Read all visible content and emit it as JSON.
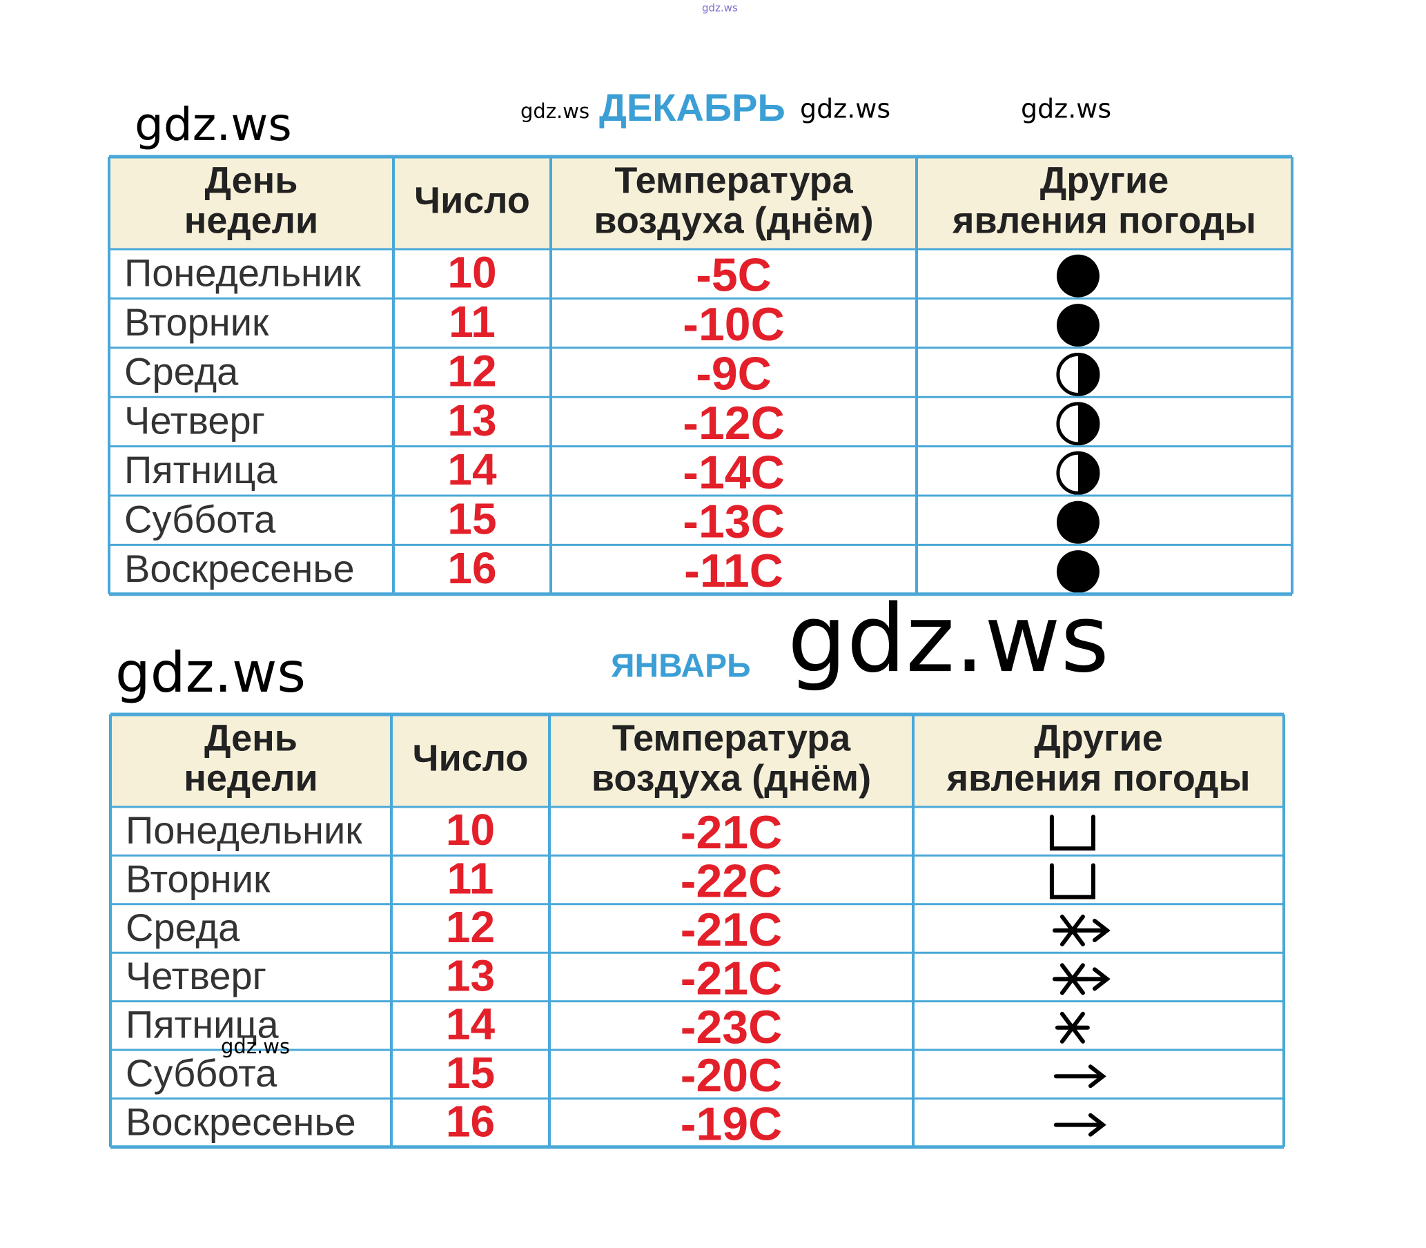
{
  "watermarks": [
    "gdz.ws",
    "gdz.ws",
    "gdz.ws",
    "gdz.ws",
    "gdz.ws",
    "gdz.ws",
    "gdz.ws",
    "gdz.ws"
  ],
  "tables": [
    {
      "title": "ДЕКАБРЬ",
      "header": [
        [
          "День",
          "недели"
        ],
        [
          "Число"
        ],
        [
          "Температура",
          "воздуха  (днём)"
        ],
        [
          "Другие",
          "явления  погоды"
        ]
      ],
      "rows": [
        [
          "Понедельник",
          "10",
          "-5C"
        ],
        [
          "Вторник",
          "11",
          "-10C"
        ],
        [
          "Среда",
          "12",
          "-9C"
        ],
        [
          "Четверг",
          "13",
          "-12C"
        ],
        [
          "Пятница",
          "14",
          "-14C"
        ],
        [
          "Суббота",
          "15",
          "-13C"
        ],
        [
          "Воскресенье",
          "16",
          "-11C"
        ]
      ]
    },
    {
      "title": "ЯНВАРЬ",
      "header": [
        [
          "День",
          "недели"
        ],
        [
          "Число"
        ],
        [
          "Температура",
          "воздуха  (днём)"
        ],
        [
          "Другие",
          "явления  погоды"
        ]
      ],
      "rows": [
        [
          "Понедельник",
          "10",
          "-21C"
        ],
        [
          "Вторник",
          "11",
          "-22C"
        ],
        [
          "Среда",
          "12",
          "-21C"
        ],
        [
          "Четверг",
          "13",
          "-21C"
        ],
        [
          "Пятница",
          "14",
          "-23C"
        ],
        [
          "Суббота",
          "15",
          "-20C"
        ],
        [
          "Воскресенье",
          "16",
          "-19C"
        ]
      ]
    }
  ]
}
